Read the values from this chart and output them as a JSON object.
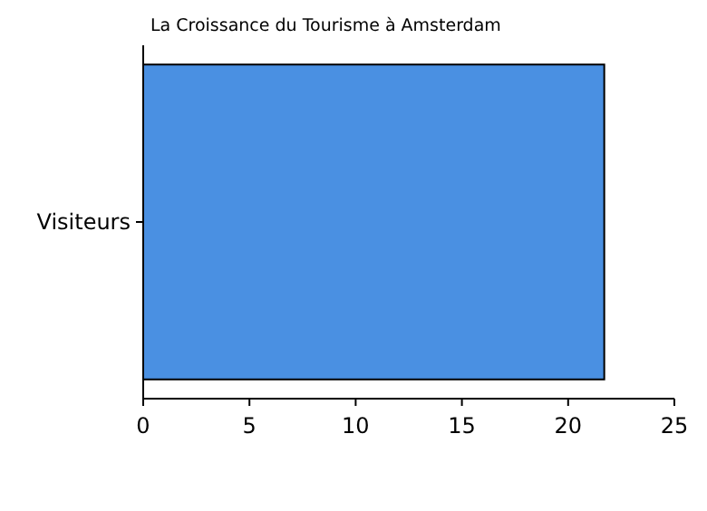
{
  "chart_data": {
    "type": "bar",
    "orientation": "horizontal",
    "title": "La Croissance du Tourisme à Amsterdam",
    "categories": [
      "Visiteurs"
    ],
    "values": [
      21.7
    ],
    "color": "#4a90e2",
    "xlim": [
      0,
      25
    ],
    "xticks": [
      0,
      5,
      10,
      15,
      20,
      25
    ],
    "grid": false
  }
}
